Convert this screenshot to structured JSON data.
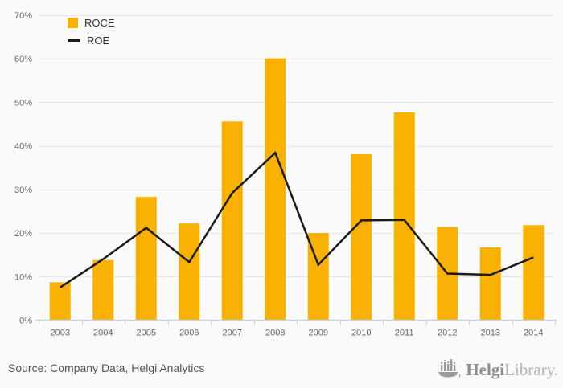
{
  "chart_data": {
    "type": "bar",
    "title": "",
    "categories": [
      "2003",
      "2004",
      "2005",
      "2006",
      "2007",
      "2008",
      "2009",
      "2010",
      "2011",
      "2012",
      "2013",
      "2014"
    ],
    "series": [
      {
        "name": "ROCE",
        "type": "bar",
        "color": "#F9B104",
        "values": [
          8.7,
          13.8,
          28.3,
          22.2,
          45.6,
          60.1,
          20.0,
          38.1,
          47.7,
          21.4,
          16.7,
          21.8
        ]
      },
      {
        "name": "ROE",
        "type": "line",
        "color": "#1A1A1A",
        "values": [
          7.5,
          14.0,
          21.2,
          13.3,
          29.2,
          38.4,
          12.7,
          22.9,
          23.0,
          10.7,
          10.4,
          14.4
        ]
      }
    ],
    "xlabel": "",
    "ylabel": "",
    "ylim": [
      0,
      70
    ],
    "ytick_step": 10,
    "ytick_suffix": "%",
    "grid": true,
    "legend_position": "top-left",
    "colors": {
      "background": "#FAFAFA",
      "grid": "#E7E7E7",
      "axis": "#C9D2E0",
      "tick_label": "#666666"
    }
  },
  "footer": {
    "source": "Source: Company Data, Helgi Analytics",
    "brand_primary": "Helgi",
    "brand_secondary": "Library."
  }
}
